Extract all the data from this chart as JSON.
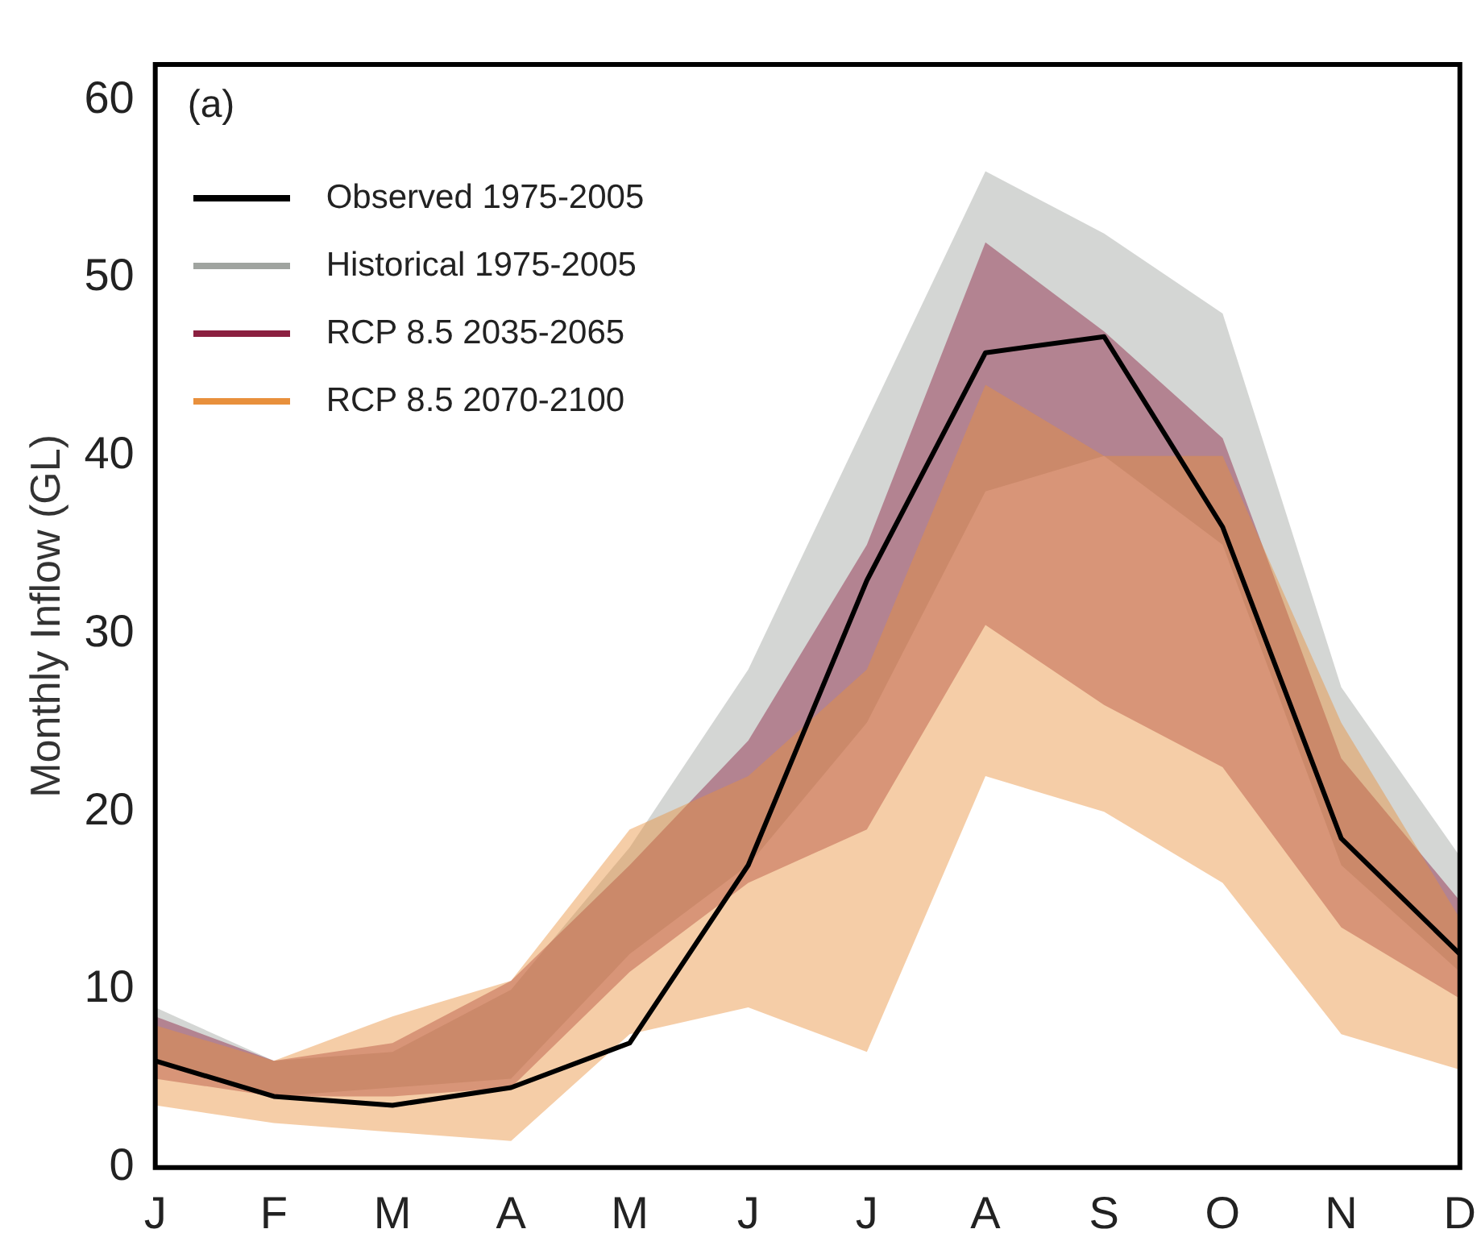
{
  "chart_data": {
    "type": "line",
    "ylabel": "Monthly Inflow (GL)",
    "annotations": [
      "(a)"
    ],
    "categories": [
      "J",
      "F",
      "M",
      "A",
      "M",
      "J",
      "J",
      "A",
      "S",
      "O",
      "N",
      "D"
    ],
    "ylim": [
      0,
      62
    ],
    "yticks": [
      0,
      10,
      20,
      30,
      40,
      50,
      60
    ],
    "grid": false,
    "legend": "top left",
    "marker": "none",
    "line_style": "solid",
    "series": [
      {
        "name": "Observed 1975-2005",
        "color": "#000000",
        "values": [
          6,
          4,
          3.5,
          4.5,
          7,
          17,
          33,
          45.8,
          46.7,
          36,
          18.5,
          12
        ]
      },
      {
        "name": "Historical 1975-2005",
        "color": "#a0a4a0",
        "values": [
          null,
          null,
          null,
          null,
          null,
          null,
          null,
          null,
          null,
          null,
          null,
          null
        ],
        "lower": [
          6,
          4,
          4.5,
          5,
          12,
          17,
          25,
          38,
          40,
          35,
          17,
          11
        ],
        "upper": [
          9,
          6,
          6.5,
          10,
          18,
          28,
          42,
          56,
          52.5,
          48,
          27,
          17.5
        ]
      },
      {
        "name": "RCP 8.5  2035-2065",
        "color": "#8b2040",
        "values": [
          null,
          null,
          null,
          null,
          null,
          null,
          null,
          null,
          null,
          null,
          null,
          null
        ],
        "lower": [
          5,
          4,
          4,
          4.5,
          11,
          16,
          19,
          30.5,
          26,
          22.5,
          13.5,
          9.5
        ],
        "upper": [
          8.5,
          6,
          7,
          10.5,
          17,
          24,
          35,
          52,
          47,
          41,
          23,
          15
        ]
      },
      {
        "name": "RCP 8.5  2070-2100",
        "color": "#e8903c",
        "values": [
          null,
          null,
          null,
          null,
          null,
          null,
          null,
          null,
          null,
          null,
          null,
          null
        ],
        "lower": [
          3.5,
          2.5,
          2,
          1.5,
          7.5,
          9,
          6.5,
          22,
          20,
          16,
          7.5,
          5.5
        ],
        "upper": [
          8,
          6,
          8.5,
          10.5,
          19,
          22,
          28,
          44,
          40,
          40,
          25,
          14
        ]
      }
    ]
  }
}
